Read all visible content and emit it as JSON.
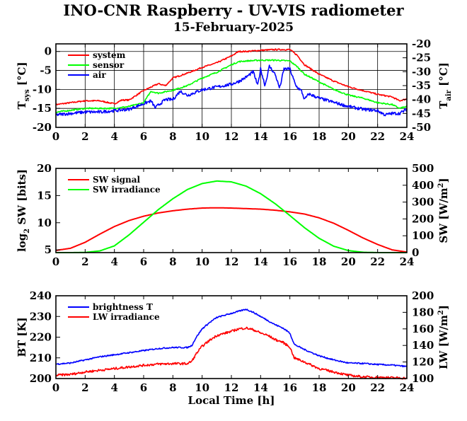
{
  "title": "INO-CNR Raspberry - UV-VIS radiometer",
  "subtitle": "15-February-2025",
  "xlabel": "Local Time [h]",
  "chart_data": [
    {
      "type": "line",
      "ylabel": {
        "main": "T",
        "sub": "sys",
        "unit": "[°C]"
      },
      "y2label": {
        "main": "T",
        "sub": "air",
        "unit": "[°C]"
      },
      "xlim": [
        0,
        24
      ],
      "ylim": [
        -20,
        2
      ],
      "y2lim": [
        -50,
        -20
      ],
      "xticks": [
        0,
        2,
        4,
        6,
        8,
        10,
        12,
        14,
        16,
        18,
        20,
        22,
        24
      ],
      "yticks": [
        0,
        -5,
        -10,
        -15,
        -20
      ],
      "y2ticks": [
        -20,
        -25,
        -30,
        -35,
        -40,
        -45,
        -50
      ],
      "grid": true,
      "legend_position": "top-left",
      "series": [
        {
          "name": "system",
          "color": "#ff0000",
          "axis": "left",
          "x": [
            0,
            1,
            2,
            3,
            4,
            4.5,
            5,
            6,
            7,
            7.5,
            8,
            9,
            10,
            11,
            12,
            12.5,
            13,
            14,
            15,
            16,
            16.5,
            17,
            18,
            19,
            20,
            21,
            22,
            23,
            23.5,
            24
          ],
          "y": [
            -14,
            -13.5,
            -13,
            -13,
            -13.8,
            -12.8,
            -12.8,
            -10.3,
            -8.5,
            -9,
            -7,
            -5.7,
            -4.2,
            -3,
            -1.2,
            0,
            0,
            0.3,
            0.5,
            0.5,
            -1,
            -3.5,
            -6,
            -7.8,
            -9.3,
            -10.3,
            -11.3,
            -12,
            -13,
            -12.5
          ]
        },
        {
          "name": "sensor",
          "color": "#00ff00",
          "axis": "left",
          "x": [
            0,
            1,
            2,
            3,
            4,
            5,
            6,
            6.5,
            7,
            8,
            9,
            10,
            11,
            12,
            12.5,
            13,
            14,
            15,
            16,
            16.5,
            17,
            18,
            19,
            20,
            21,
            22,
            23,
            23.5,
            24
          ],
          "y": [
            -16,
            -15.5,
            -15,
            -15,
            -15,
            -14.5,
            -13.5,
            -10.5,
            -11,
            -10.2,
            -9,
            -7,
            -5.5,
            -3.5,
            -2.7,
            -2.5,
            -2.3,
            -2.3,
            -2.5,
            -4,
            -6,
            -8,
            -10,
            -11.5,
            -12.3,
            -13.5,
            -14,
            -15,
            -14.5
          ]
        },
        {
          "name": "air",
          "color": "#0000ff",
          "axis": "right",
          "x": [
            0,
            1,
            2,
            3,
            4,
            5,
            6,
            6.5,
            6.8,
            7,
            7.5,
            8,
            8.5,
            9,
            10,
            11,
            12,
            12.5,
            13,
            13.5,
            13.8,
            14,
            14.3,
            14.6,
            15,
            15.3,
            15.6,
            16,
            16.4,
            16.8,
            17,
            17.3,
            18,
            19,
            20,
            21,
            22,
            22.5,
            23,
            23.5,
            24
          ],
          "y": [
            -45.5,
            -45,
            -44.5,
            -44.5,
            -44,
            -43.5,
            -41.5,
            -40.5,
            -43,
            -42,
            -40,
            -40,
            -37,
            -38.5,
            -36.5,
            -35.5,
            -34.5,
            -33.5,
            -32,
            -30,
            -35,
            -29,
            -35,
            -28,
            -31,
            -36,
            -29,
            -29,
            -35,
            -37,
            -40,
            -38,
            -39.5,
            -41,
            -42.5,
            -43.5,
            -44,
            -45.5,
            -45,
            -45,
            -43.5
          ]
        }
      ]
    },
    {
      "type": "line",
      "ylabel": {
        "main": "log",
        "sub": "2",
        "unit": "SW [bits]"
      },
      "y2label": {
        "main": "SW",
        "sup": "2",
        "unit": "[W/m",
        "close": "]"
      },
      "xlim": [
        0,
        24
      ],
      "ylim": [
        4.5,
        20
      ],
      "y2lim": [
        0,
        500
      ],
      "xticks": [
        0,
        2,
        4,
        6,
        8,
        10,
        12,
        14,
        16,
        18,
        20,
        22,
        24
      ],
      "yticks": [
        5,
        10,
        15,
        20
      ],
      "y2ticks": [
        0,
        100,
        200,
        300,
        400,
        500
      ],
      "grid": false,
      "legend_position": "top-left",
      "series": [
        {
          "name": "SW signal",
          "color": "#ff0000",
          "axis": "left",
          "x": [
            0,
            1,
            2,
            3,
            4,
            5,
            6,
            7,
            8,
            9,
            10,
            11,
            12,
            13,
            14,
            15,
            16,
            17,
            18,
            19,
            20,
            21,
            22,
            23,
            24
          ],
          "y": [
            4.9,
            5.3,
            6.4,
            7.9,
            9.3,
            10.4,
            11.2,
            11.8,
            12.2,
            12.5,
            12.7,
            12.75,
            12.7,
            12.6,
            12.5,
            12.3,
            12,
            11.6,
            10.9,
            9.9,
            8.6,
            7.2,
            6,
            5,
            4.6
          ]
        },
        {
          "name": "SW irradiance",
          "color": "#00ff00",
          "axis": "right",
          "x": [
            0,
            1,
            2,
            3,
            4,
            5,
            6,
            7,
            8,
            9,
            10,
            11,
            12,
            13,
            14,
            15,
            16,
            17,
            18,
            19,
            20,
            21,
            22,
            23,
            24
          ],
          "y": [
            0,
            0,
            1,
            10,
            40,
            105,
            180,
            255,
            320,
            375,
            410,
            425,
            420,
            395,
            350,
            290,
            220,
            148,
            85,
            38,
            12,
            2,
            0,
            0,
            0
          ]
        }
      ]
    },
    {
      "type": "line",
      "ylabel": {
        "main": "BT [K]"
      },
      "y2label": {
        "main": "LW",
        "sup": "2",
        "unit": "[W/m",
        "close": "]"
      },
      "xlim": [
        0,
        24
      ],
      "ylim": [
        200,
        240
      ],
      "y2lim": [
        100,
        200
      ],
      "xticks": [
        0,
        2,
        4,
        6,
        8,
        10,
        12,
        14,
        16,
        18,
        20,
        22,
        24
      ],
      "yticks": [
        200,
        210,
        220,
        230,
        240
      ],
      "y2ticks": [
        100,
        120,
        140,
        160,
        180,
        200
      ],
      "grid": false,
      "legend_position": "top-left",
      "series": [
        {
          "name": "brightness T",
          "color": "#0000ff",
          "axis": "left",
          "x": [
            0,
            1,
            2,
            3,
            4,
            5,
            6,
            7,
            8,
            9,
            9.3,
            9.6,
            10,
            10.5,
            11,
            12,
            12.5,
            13,
            13.5,
            14,
            14.5,
            15,
            15.5,
            16,
            16.3,
            17,
            18,
            19,
            20,
            21,
            22,
            23,
            24
          ],
          "y": [
            207,
            207.5,
            209,
            210.5,
            211.5,
            212.5,
            213.5,
            214.5,
            215,
            215,
            216,
            220,
            224,
            227,
            229.5,
            231.5,
            232.5,
            233.5,
            232,
            230,
            228,
            226,
            224.5,
            222,
            216.5,
            214,
            211,
            209,
            207.5,
            207.3,
            206.8,
            206.5,
            205.8
          ]
        },
        {
          "name": "LW irradiance",
          "color": "#ff0000",
          "axis": "right",
          "x": [
            0,
            1,
            2,
            3,
            4,
            5,
            6,
            7,
            8,
            9,
            9.3,
            9.6,
            10,
            10.5,
            11,
            12,
            12.5,
            13,
            13.5,
            14,
            14.5,
            15,
            15.5,
            16,
            16.3,
            17,
            18,
            19,
            20,
            21,
            22,
            23,
            24
          ],
          "y": [
            104,
            105,
            108,
            110,
            112,
            114,
            116,
            117.5,
            118,
            118,
            121,
            130,
            139,
            146,
            152,
            157,
            160,
            161,
            159,
            155,
            152,
            147,
            144,
            138,
            125,
            120,
            112,
            108,
            104,
            102,
            101.5,
            101,
            100.5
          ]
        }
      ]
    }
  ]
}
